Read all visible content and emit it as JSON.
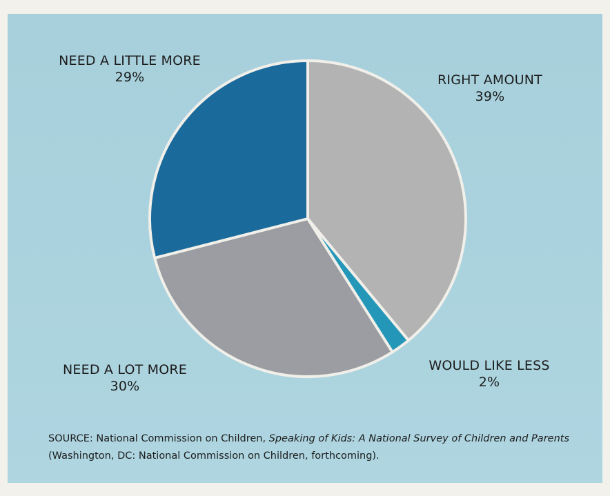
{
  "chart_data": {
    "type": "pie",
    "slices": [
      {
        "label": "RIGHT AMOUNT",
        "value": 39,
        "display": "39%",
        "color": "#b3b3b3"
      },
      {
        "label": "WOULD LIKE LESS",
        "value": 2,
        "display": "2%",
        "color": "#2497b8"
      },
      {
        "label": "NEED A LOT MORE",
        "value": 30,
        "display": "30%",
        "color": "#9c9da2"
      },
      {
        "label": "NEED A LITTLE MORE",
        "value": 29,
        "display": "29%",
        "color": "#1a6a9b"
      }
    ],
    "start": "12 o'clock",
    "direction": "clockwise",
    "slice_separator_color": "#f1efe9"
  },
  "source": {
    "prefix": "SOURCE: National Commission on Children, ",
    "title": "Speaking of Kids:  A National Survey of Children and Parents",
    "suffix": " (Washington, DC: National Commission on Children, forthcoming)."
  },
  "colors": {
    "background": "#a9d2de",
    "page": "#f2f1ec"
  }
}
